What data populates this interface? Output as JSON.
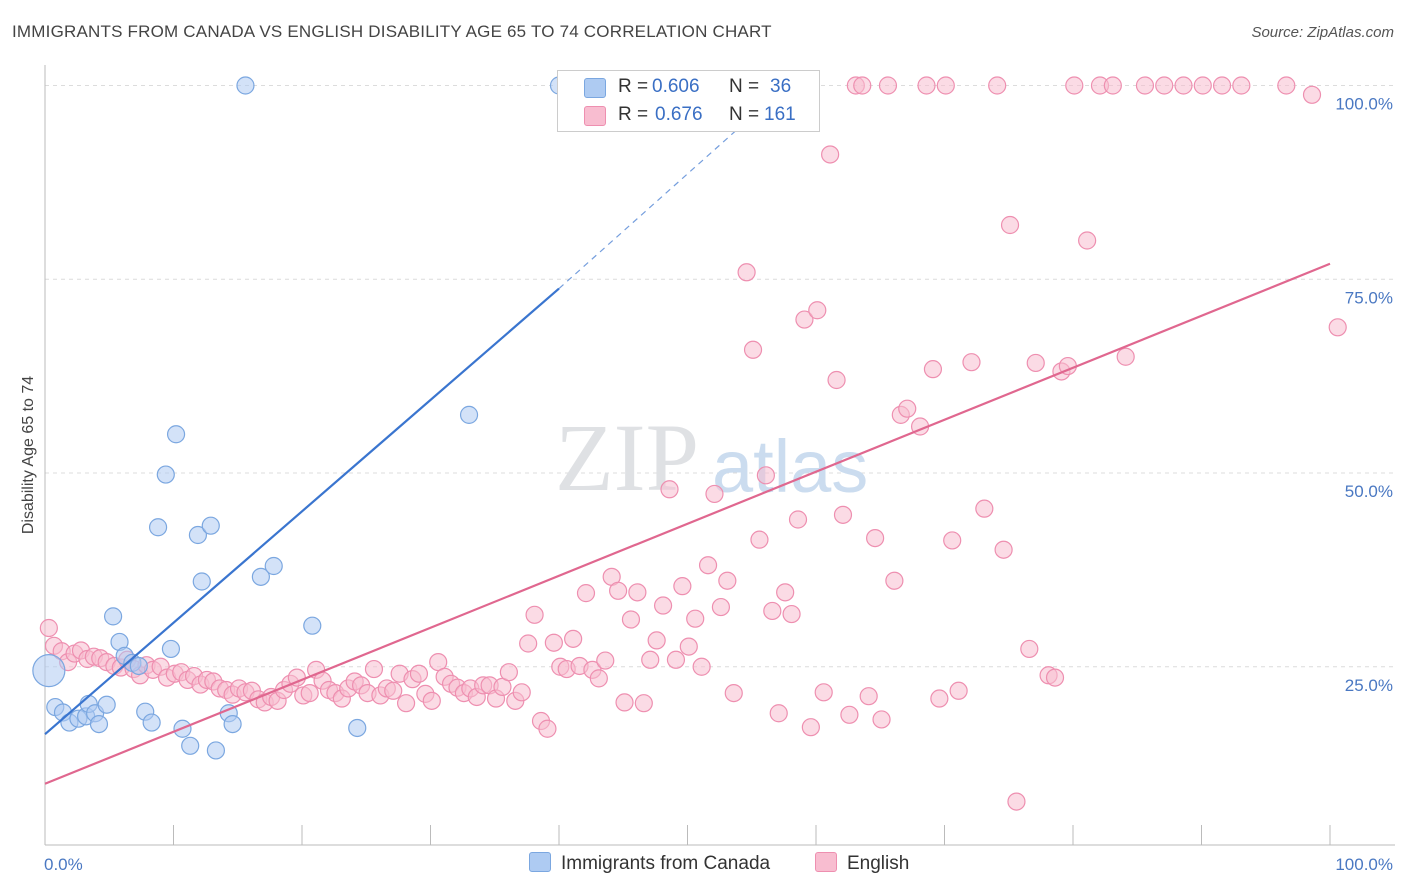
{
  "title": "IMMIGRANTS FROM CANADA VS ENGLISH DISABILITY AGE 65 TO 74 CORRELATION CHART",
  "source": "Source: ZipAtlas.com",
  "watermark": {
    "zip": "ZIP",
    "atlas": "atlas"
  },
  "legend": {
    "rows": [
      {
        "r_label": "R =",
        "r_value": "0.606",
        "n_label": "N =",
        "n_value": "36",
        "color": "#aecbf2",
        "border": "#7ba7e0"
      },
      {
        "r_label": "R =",
        "r_value": "0.676",
        "n_label": "N =",
        "n_value": "161",
        "color": "#f8bdd0",
        "border": "#ee8fb0"
      }
    ]
  },
  "bottom_legend": [
    {
      "label": "Immigrants from Canada",
      "color": "#aecbf2",
      "border": "#7ba7e0"
    },
    {
      "label": "English",
      "color": "#f8bdd0",
      "border": "#ee8fb0"
    }
  ],
  "chart_data": {
    "type": "scatter",
    "ylabel": "Disability Age 65 to 74",
    "xlabel": "",
    "xlim": [
      0,
      100
    ],
    "ylim": [
      2,
      102
    ],
    "x_tick_labels": [
      {
        "value": 0,
        "label": "0.0%"
      },
      {
        "value": 100,
        "label": "100.0%"
      }
    ],
    "y_tick_labels": [
      {
        "value": 25,
        "label": "25.0%"
      },
      {
        "value": 50,
        "label": "50.0%"
      },
      {
        "value": 75,
        "label": "75.0%"
      },
      {
        "value": 100,
        "label": "100.0%"
      }
    ],
    "grid": "horizontal dashed",
    "series": [
      {
        "name": "Immigrants from Canada",
        "color": "#aecbf2",
        "stroke": "#7ba7e0",
        "line_color": "#3a75cf",
        "trend": {
          "x0": 0,
          "y0": 16.3,
          "x1": 40,
          "y1": 73.8,
          "dash_to": [
            55,
            96
          ]
        },
        "points": [
          [
            0.3,
            24.5,
            "big"
          ],
          [
            0.8,
            19.8
          ],
          [
            1.4,
            19.1
          ],
          [
            1.9,
            17.8
          ],
          [
            2.6,
            18.3
          ],
          [
            3.2,
            18.6
          ],
          [
            3.4,
            20.2
          ],
          [
            3.9,
            19.0
          ],
          [
            4.2,
            17.6
          ],
          [
            4.8,
            20.1
          ],
          [
            5.3,
            31.5
          ],
          [
            5.8,
            28.2
          ],
          [
            6.2,
            26.4
          ],
          [
            6.8,
            25.5
          ],
          [
            7.3,
            25.1
          ],
          [
            7.8,
            19.2
          ],
          [
            8.3,
            17.8
          ],
          [
            8.8,
            43.0
          ],
          [
            9.4,
            49.8
          ],
          [
            9.8,
            27.3
          ],
          [
            10.2,
            55.0
          ],
          [
            10.7,
            17.0
          ],
          [
            11.3,
            14.8
          ],
          [
            11.9,
            42.0
          ],
          [
            12.2,
            36.0
          ],
          [
            12.9,
            43.2
          ],
          [
            13.3,
            14.2
          ],
          [
            14.3,
            19.0
          ],
          [
            14.6,
            17.6
          ],
          [
            15.6,
            100.0
          ],
          [
            16.8,
            36.6
          ],
          [
            17.8,
            38.0
          ],
          [
            20.8,
            30.3
          ],
          [
            24.3,
            17.1
          ],
          [
            33.0,
            57.5
          ],
          [
            40.0,
            100.0
          ]
        ]
      },
      {
        "name": "English",
        "color": "#f8bdd0",
        "stroke": "#ee8fb0",
        "line_color": "#e0678f",
        "trend": {
          "x0": 0,
          "y0": 9.9,
          "x1": 100,
          "y1": 77.0
        },
        "points": [
          [
            0.3,
            30.0
          ],
          [
            0.7,
            27.7
          ],
          [
            1.3,
            27.0
          ],
          [
            1.8,
            25.6
          ],
          [
            2.3,
            26.7
          ],
          [
            2.8,
            27.1
          ],
          [
            3.3,
            26.0
          ],
          [
            3.8,
            26.3
          ],
          [
            4.3,
            26.1
          ],
          [
            4.8,
            25.6
          ],
          [
            5.4,
            25.1
          ],
          [
            5.9,
            24.9
          ],
          [
            6.4,
            25.9
          ],
          [
            6.9,
            24.7
          ],
          [
            7.4,
            23.9
          ],
          [
            7.9,
            25.2
          ],
          [
            8.4,
            24.6
          ],
          [
            9.0,
            25.0
          ],
          [
            9.5,
            23.6
          ],
          [
            10.1,
            24.1
          ],
          [
            10.6,
            24.3
          ],
          [
            11.1,
            23.3
          ],
          [
            11.6,
            23.8
          ],
          [
            12.1,
            22.7
          ],
          [
            12.6,
            23.3
          ],
          [
            13.1,
            23.1
          ],
          [
            13.6,
            22.2
          ],
          [
            14.1,
            22.0
          ],
          [
            14.6,
            21.4
          ],
          [
            15.1,
            22.2
          ],
          [
            15.6,
            21.7
          ],
          [
            16.1,
            21.9
          ],
          [
            16.6,
            20.8
          ],
          [
            17.1,
            20.4
          ],
          [
            17.6,
            21.1
          ],
          [
            18.1,
            20.6
          ],
          [
            18.6,
            22.0
          ],
          [
            19.1,
            22.8
          ],
          [
            19.6,
            23.6
          ],
          [
            20.1,
            21.3
          ],
          [
            20.6,
            21.6
          ],
          [
            21.1,
            24.6
          ],
          [
            21.6,
            23.2
          ],
          [
            22.1,
            22.0
          ],
          [
            22.6,
            21.6
          ],
          [
            23.1,
            20.9
          ],
          [
            23.6,
            22.2
          ],
          [
            24.1,
            23.1
          ],
          [
            24.6,
            22.6
          ],
          [
            25.1,
            21.6
          ],
          [
            25.6,
            24.7
          ],
          [
            26.1,
            21.3
          ],
          [
            26.6,
            22.2
          ],
          [
            27.1,
            21.9
          ],
          [
            27.6,
            24.1
          ],
          [
            28.1,
            20.3
          ],
          [
            28.6,
            23.4
          ],
          [
            29.1,
            24.1
          ],
          [
            29.6,
            21.5
          ],
          [
            30.1,
            20.6
          ],
          [
            30.6,
            25.6
          ],
          [
            31.1,
            23.7
          ],
          [
            31.6,
            22.8
          ],
          [
            32.1,
            22.3
          ],
          [
            32.6,
            21.6
          ],
          [
            33.1,
            22.2
          ],
          [
            33.6,
            21.1
          ],
          [
            34.1,
            22.6
          ],
          [
            34.6,
            22.6
          ],
          [
            35.1,
            20.9
          ],
          [
            35.6,
            22.4
          ],
          [
            36.1,
            24.3
          ],
          [
            36.6,
            20.6
          ],
          [
            37.1,
            21.7
          ],
          [
            37.6,
            28.0
          ],
          [
            38.1,
            31.7
          ],
          [
            38.6,
            18.0
          ],
          [
            39.1,
            17.0
          ],
          [
            39.6,
            28.1
          ],
          [
            40.1,
            25.0
          ],
          [
            40.6,
            24.7
          ],
          [
            41.1,
            28.6
          ],
          [
            41.6,
            25.1
          ],
          [
            42.1,
            34.5
          ],
          [
            42.6,
            24.6
          ],
          [
            43.1,
            23.5
          ],
          [
            43.6,
            25.8
          ],
          [
            44.1,
            36.6
          ],
          [
            44.6,
            34.8
          ],
          [
            45.1,
            20.4
          ],
          [
            45.6,
            31.1
          ],
          [
            46.1,
            34.6
          ],
          [
            46.6,
            20.3
          ],
          [
            47.1,
            25.9
          ],
          [
            47.6,
            28.4
          ],
          [
            48.1,
            32.9
          ],
          [
            48.6,
            47.9
          ],
          [
            49.1,
            25.9
          ],
          [
            49.6,
            35.4
          ],
          [
            50.1,
            27.6
          ],
          [
            50.6,
            31.2
          ],
          [
            51.1,
            25.0
          ],
          [
            51.6,
            38.1
          ],
          [
            52.1,
            47.3
          ],
          [
            52.6,
            32.7
          ],
          [
            53.1,
            36.1
          ],
          [
            53.6,
            21.6
          ],
          [
            54.1,
            100.0
          ],
          [
            54.6,
            75.9
          ],
          [
            55.1,
            65.9
          ],
          [
            55.6,
            41.4
          ],
          [
            56.1,
            49.7
          ],
          [
            56.6,
            32.2
          ],
          [
            57.1,
            19.0
          ],
          [
            57.6,
            34.6
          ],
          [
            58.1,
            31.8
          ],
          [
            58.6,
            44.0
          ],
          [
            59.1,
            69.8
          ],
          [
            59.6,
            17.2
          ],
          [
            60.1,
            71.0
          ],
          [
            60.6,
            21.7
          ],
          [
            61.1,
            91.1
          ],
          [
            61.6,
            62.0
          ],
          [
            62.1,
            44.6
          ],
          [
            62.6,
            18.8
          ],
          [
            63.1,
            100.0
          ],
          [
            63.6,
            100.0
          ],
          [
            64.1,
            21.2
          ],
          [
            64.6,
            41.6
          ],
          [
            65.1,
            18.2
          ],
          [
            65.6,
            100.0
          ],
          [
            66.1,
            36.1
          ],
          [
            66.6,
            57.5
          ],
          [
            67.1,
            58.3
          ],
          [
            68.1,
            56.0
          ],
          [
            68.6,
            100.0
          ],
          [
            69.1,
            63.4
          ],
          [
            69.6,
            20.9
          ],
          [
            70.1,
            100.0
          ],
          [
            70.6,
            41.3
          ],
          [
            71.1,
            21.9
          ],
          [
            72.1,
            64.3
          ],
          [
            73.1,
            45.4
          ],
          [
            74.1,
            100.0
          ],
          [
            74.6,
            40.1
          ],
          [
            75.1,
            82.0
          ],
          [
            75.6,
            7.6
          ],
          [
            76.6,
            27.3
          ],
          [
            77.1,
            64.2
          ],
          [
            78.1,
            23.9
          ],
          [
            78.6,
            23.6
          ],
          [
            79.1,
            63.1
          ],
          [
            79.6,
            63.8
          ],
          [
            80.1,
            100.0
          ],
          [
            81.1,
            80.0
          ],
          [
            82.1,
            100.0
          ],
          [
            83.1,
            100.0
          ],
          [
            84.1,
            65.0
          ],
          [
            85.6,
            100.0
          ],
          [
            87.1,
            100.0
          ],
          [
            88.6,
            100.0
          ],
          [
            90.1,
            100.0
          ],
          [
            91.6,
            100.0
          ],
          [
            93.1,
            100.0
          ],
          [
            96.6,
            100.0
          ],
          [
            98.6,
            98.8
          ],
          [
            100.6,
            68.8
          ]
        ]
      }
    ]
  }
}
